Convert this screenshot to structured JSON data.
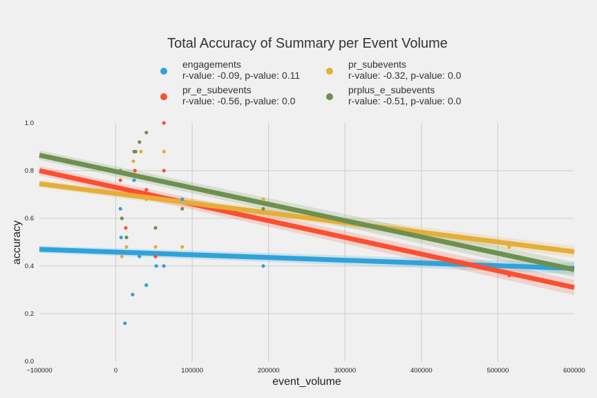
{
  "chart_data": {
    "type": "scatter",
    "title": "Total Accuracy of Summary per Event Volume",
    "xlabel": "event_volume",
    "ylabel": "accuracy",
    "xlim": [
      -100000,
      600000
    ],
    "ylim": [
      0.0,
      1.0
    ],
    "x_ticks": [
      -100000,
      0,
      100000,
      200000,
      300000,
      400000,
      500000,
      600000
    ],
    "x_tick_labels": [
      "−100000",
      "0",
      "100000",
      "200000",
      "300000",
      "400000",
      "500000",
      "600000"
    ],
    "y_ticks": [
      0.0,
      0.2,
      0.4,
      0.6,
      0.8,
      1.0
    ],
    "y_tick_labels": [
      "0.0",
      "0.2",
      "0.4",
      "0.6",
      "0.8",
      "1.0"
    ],
    "grid": true,
    "legend_position": "top",
    "series": [
      {
        "name": "engagements",
        "legend_line2": "r-value: -0.09, p-value: 0.11",
        "color": "#30a2da",
        "points": [
          [
            7000,
            0.52
          ],
          [
            6000,
            0.64
          ],
          [
            12000,
            0.16
          ],
          [
            22000,
            0.28
          ],
          [
            24000,
            0.76
          ],
          [
            31000,
            0.44
          ],
          [
            40000,
            0.32
          ],
          [
            53000,
            0.4
          ],
          [
            63000,
            0.4
          ],
          [
            87000,
            0.68
          ],
          [
            193000,
            0.4
          ],
          [
            515000,
            0.4
          ]
        ],
        "fit": [
          [
            -100000,
            0.47
          ],
          [
            600000,
            0.39
          ]
        ],
        "band": 0.015
      },
      {
        "name": "pr_e_subevents",
        "legend_line2": "r-value: -0.56, p-value: 0.0",
        "color": "#fc4f30",
        "points": [
          [
            6000,
            0.76
          ],
          [
            13000,
            0.56
          ],
          [
            25000,
            0.8
          ],
          [
            40000,
            0.72
          ],
          [
            52000,
            0.44
          ],
          [
            63000,
            0.8
          ],
          [
            63000,
            1.0
          ],
          [
            515000,
            0.36
          ]
        ],
        "fit": [
          [
            -100000,
            0.8
          ],
          [
            600000,
            0.31
          ]
        ],
        "band": 0.02
      },
      {
        "name": "pr_subevents",
        "legend_line2": "r-value: -0.32, p-value: 0.0",
        "color": "#e5ae38",
        "points": [
          [
            8000,
            0.44
          ],
          [
            14000,
            0.48
          ],
          [
            23000,
            0.84
          ],
          [
            33000,
            0.88
          ],
          [
            40000,
            0.68
          ],
          [
            52000,
            0.48
          ],
          [
            63000,
            0.88
          ],
          [
            87000,
            0.48
          ],
          [
            193000,
            0.68
          ],
          [
            515000,
            0.48
          ]
        ],
        "fit": [
          [
            -100000,
            0.745
          ],
          [
            600000,
            0.46
          ]
        ],
        "band": 0.015
      },
      {
        "name": "prplus_e_subevents",
        "legend_line2": "r-value: -0.51, p-value: 0.0",
        "color": "#6d904f",
        "points": [
          [
            6000,
            0.8
          ],
          [
            8000,
            0.6
          ],
          [
            14000,
            0.52
          ],
          [
            24000,
            0.88
          ],
          [
            26000,
            0.88
          ],
          [
            31000,
            0.92
          ],
          [
            40000,
            0.96
          ],
          [
            52000,
            0.56
          ],
          [
            87000,
            0.64
          ],
          [
            193000,
            0.64
          ],
          [
            515000,
            0.44
          ]
        ],
        "fit": [
          [
            -100000,
            0.865
          ],
          [
            600000,
            0.385
          ]
        ],
        "band": 0.02
      }
    ]
  }
}
